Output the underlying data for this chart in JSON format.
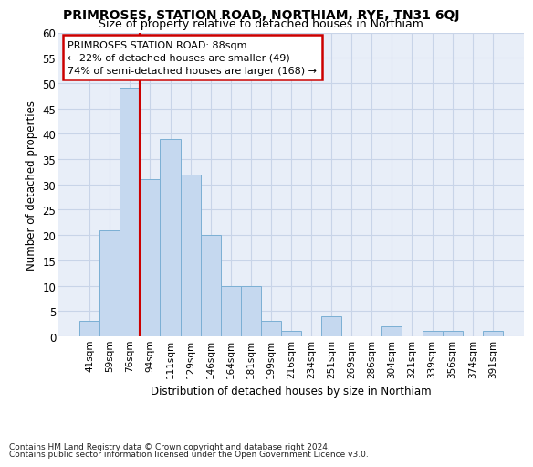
{
  "title": "PRIMROSES, STATION ROAD, NORTHIAM, RYE, TN31 6QJ",
  "subtitle": "Size of property relative to detached houses in Northiam",
  "xlabel_bottom": "Distribution of detached houses by size in Northiam",
  "ylabel": "Number of detached properties",
  "footnote1": "Contains HM Land Registry data © Crown copyright and database right 2024.",
  "footnote2": "Contains public sector information licensed under the Open Government Licence v3.0.",
  "annotation_title": "PRIMROSES STATION ROAD: 88sqm",
  "annotation_line1": "← 22% of detached houses are smaller (49)",
  "annotation_line2": "74% of semi-detached houses are larger (168) →",
  "bar_categories": [
    "41sqm",
    "59sqm",
    "76sqm",
    "94sqm",
    "111sqm",
    "129sqm",
    "146sqm",
    "164sqm",
    "181sqm",
    "199sqm",
    "216sqm",
    "234sqm",
    "251sqm",
    "269sqm",
    "286sqm",
    "304sqm",
    "321sqm",
    "339sqm",
    "356sqm",
    "374sqm",
    "391sqm"
  ],
  "bar_values": [
    3,
    21,
    49,
    31,
    39,
    32,
    20,
    10,
    10,
    3,
    1,
    0,
    4,
    0,
    0,
    2,
    0,
    1,
    1,
    0,
    1
  ],
  "bar_color": "#c5d8ef",
  "bar_edge_color": "#7bafd4",
  "grid_color": "#c8d4e8",
  "bg_color": "#e8eef8",
  "vline_x": 2.5,
  "vline_color": "#cc0000",
  "annotation_box_color": "#ffffff",
  "annotation_box_edge": "#cc0000",
  "ylim": [
    0,
    60
  ],
  "yticks": [
    0,
    5,
    10,
    15,
    20,
    25,
    30,
    35,
    40,
    45,
    50,
    55,
    60
  ]
}
